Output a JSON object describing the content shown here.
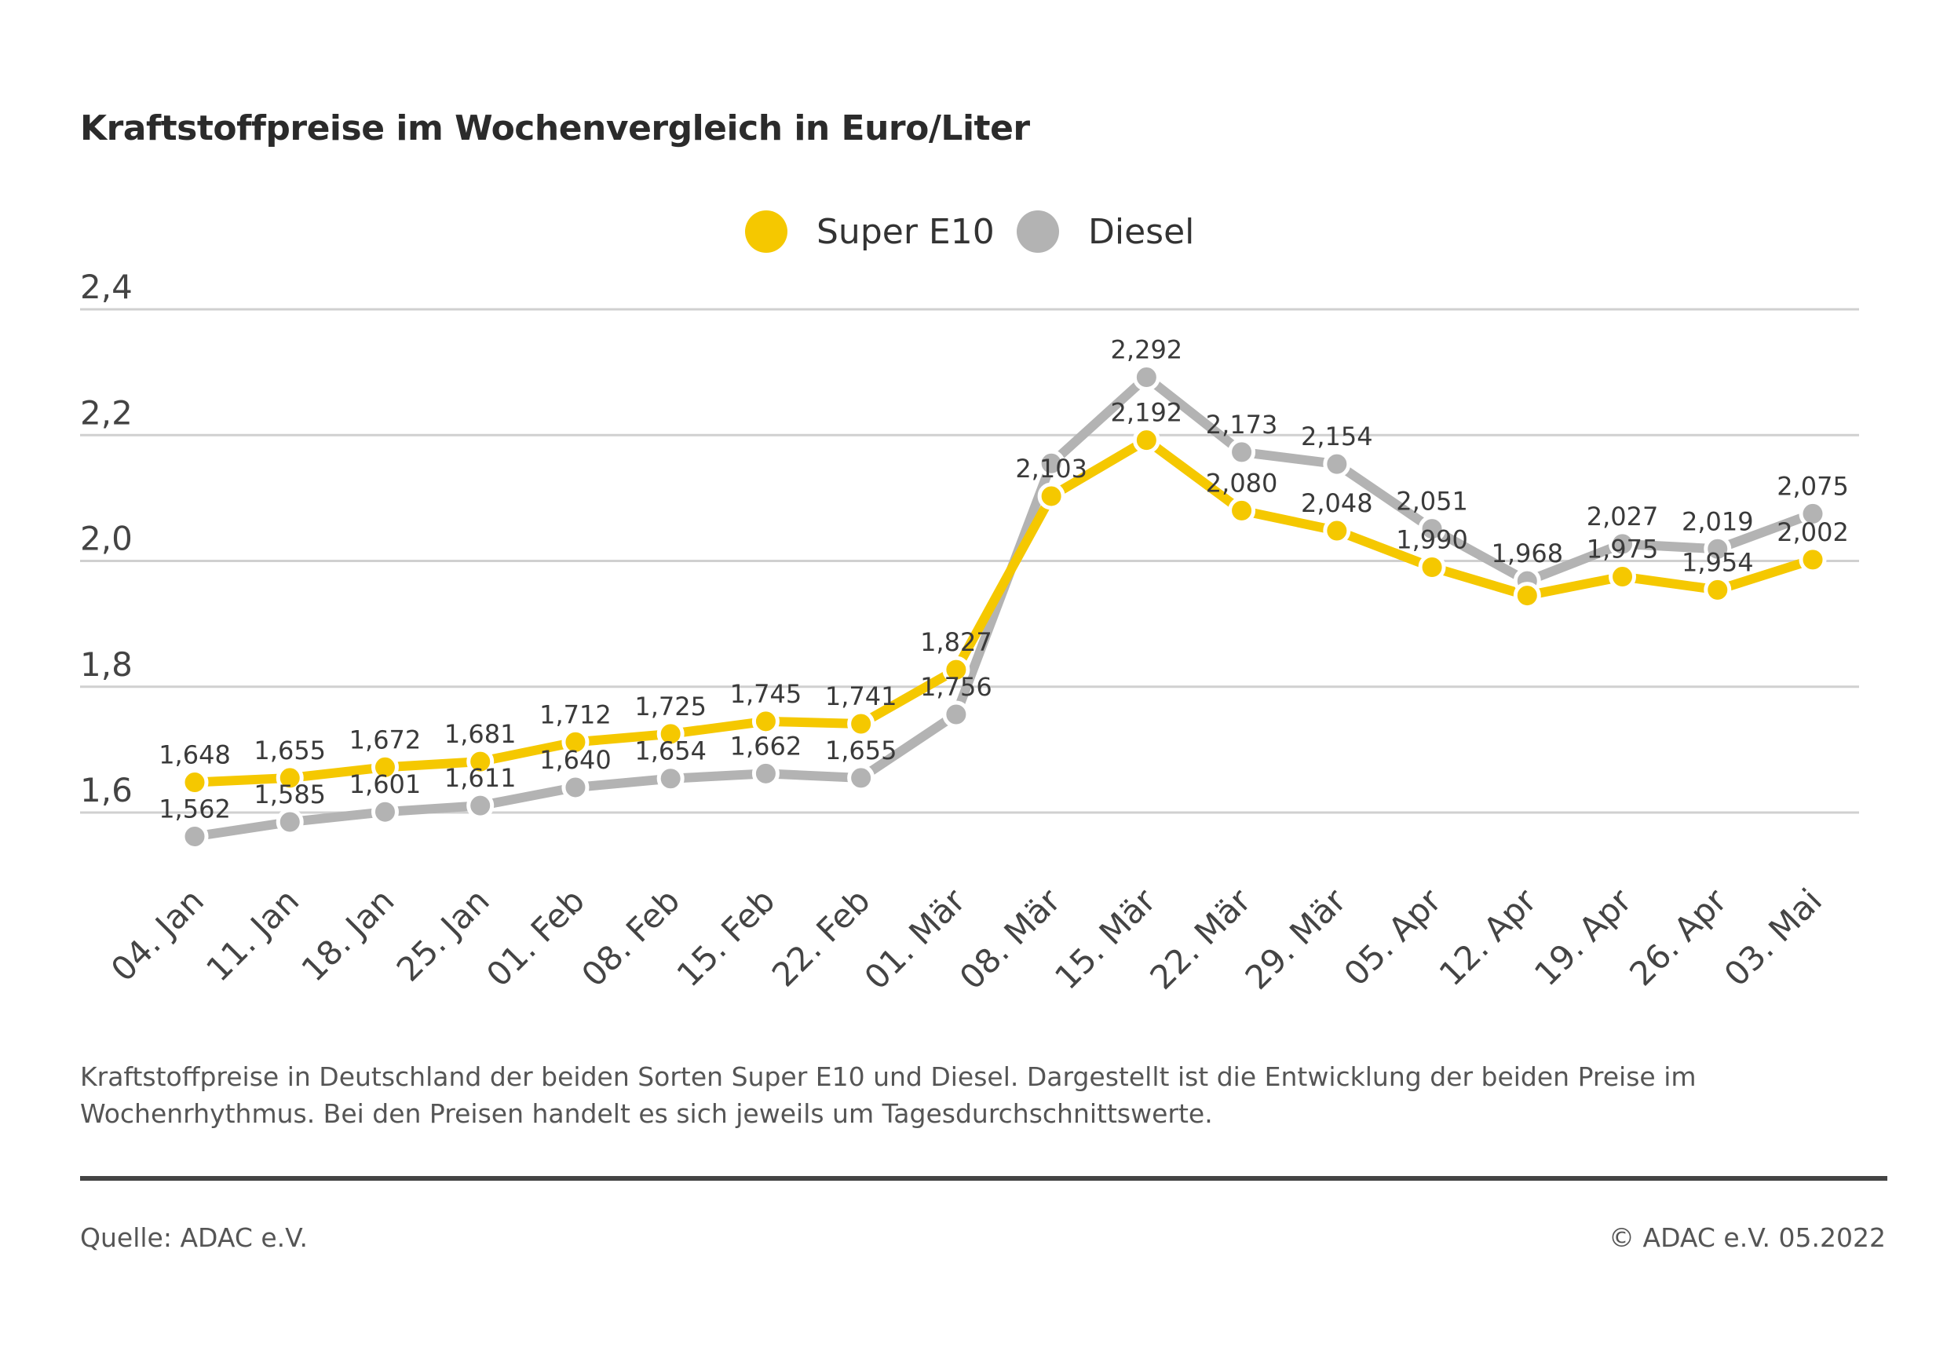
{
  "chart_data": {
    "type": "line",
    "title": "Kraftstoffpreise im Wochenvergleich in Euro/Liter",
    "categories": [
      "04. Jan",
      "11. Jan",
      "18. Jan",
      "25. Jan",
      "01. Feb",
      "08. Feb",
      "15. Feb",
      "22. Feb",
      "01. Mär",
      "08. Mär",
      "15. Mär",
      "22. Mär",
      "29. Mär",
      "05. Apr",
      "12. Apr",
      "19. Apr",
      "26. Apr",
      "03. Mai"
    ],
    "series": [
      {
        "name": "Super E10",
        "color": "#f5c800",
        "values": [
          1.648,
          1.655,
          1.672,
          1.681,
          1.712,
          1.725,
          1.745,
          1.741,
          1.827,
          2.103,
          2.192,
          2.08,
          2.048,
          1.99,
          1.945,
          1.975,
          1.954,
          2.002
        ],
        "labels": [
          "1,648",
          "1,655",
          "1,672",
          "1,681",
          "1,712",
          "1,725",
          "1,745",
          "1,741",
          "1,827",
          "2,103",
          "2,192",
          "2,080",
          "2,048",
          "1,990",
          null,
          "1,975",
          "1,954",
          "2,002"
        ]
      },
      {
        "name": "Diesel",
        "color": "#b3b3b3",
        "values": [
          1.562,
          1.585,
          1.601,
          1.611,
          1.64,
          1.654,
          1.662,
          1.655,
          1.756,
          2.155,
          2.292,
          2.173,
          2.154,
          2.051,
          1.968,
          2.027,
          2.019,
          2.075
        ],
        "labels": [
          "1,562",
          "1,585",
          "1,601",
          "1,611",
          "1,640",
          "1,654",
          "1,662",
          "1,655",
          "1,756",
          null,
          "2,292",
          "2,173",
          "2,154",
          "2,051",
          "1,968",
          "2,027",
          "2,019",
          "2,075"
        ]
      }
    ],
    "yticks": [
      "1,6",
      "1,8",
      "2,0",
      "2,2",
      "2,4"
    ],
    "ytick_values": [
      1.6,
      1.8,
      2.0,
      2.2,
      2.4
    ],
    "ylim": [
      1.6,
      2.4
    ],
    "grid": true,
    "legend": "top-center"
  },
  "note": "Kraftstoffpreise in Deutschland der beiden Sorten Super E10 und Diesel. Dargestellt ist die Entwicklung der beiden Preise im Wochenrhythmus. Bei den Preisen handelt es sich jeweils um Tagesdurchschnittswerte.",
  "source": "Quelle: ADAC e.V.",
  "copyright": "© ADAC e.V. 05.2022"
}
